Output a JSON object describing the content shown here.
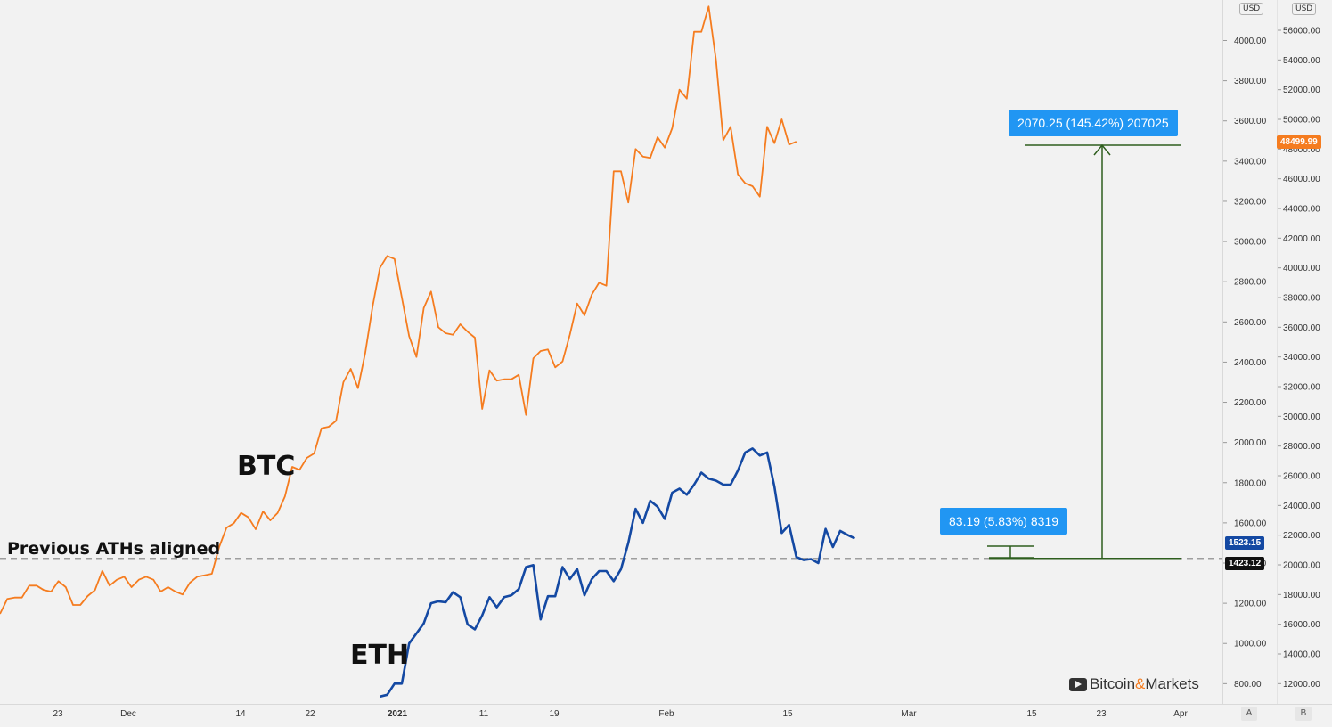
{
  "chart_data": {
    "type": "line",
    "title": "",
    "annotations": {
      "btc_label": "BTC",
      "eth_label": "ETH",
      "ath_label": "Previous ATHs aligned",
      "btc_measure": "2070.25 (145.42%) 207025",
      "eth_measure": "83.19 (5.83%) 8319"
    },
    "x_ticks": [
      "23",
      "Dec",
      "14",
      "22",
      "2021",
      "11",
      "19",
      "Feb",
      "15",
      "Mar",
      "15",
      "23",
      "Apr"
    ],
    "y_axis_left": {
      "unit": "USD",
      "range": [
        720,
        4060
      ],
      "ticks": [
        "800.00",
        "1000.00",
        "1200.00",
        "1400.00",
        "1600.00",
        "1800.00",
        "2000.00",
        "2200.00",
        "2400.00",
        "2600.00",
        "2800.00",
        "3000.00",
        "3200.00",
        "3400.00",
        "3600.00",
        "3800.00",
        "4000.00"
      ],
      "ticks_values": [
        800,
        1000,
        1200,
        1400,
        1600,
        1800,
        2000,
        2200,
        2400,
        2600,
        2800,
        3000,
        3200,
        3400,
        3600,
        3800,
        4000
      ]
    },
    "y_axis_right": {
      "unit": "USD",
      "range": [
        11000,
        58000
      ],
      "ticks": [
        "12000.00",
        "14000.00",
        "16000.00",
        "18000.00",
        "20000.00",
        "22000.00",
        "24000.00",
        "26000.00",
        "28000.00",
        "30000.00",
        "32000.00",
        "34000.00",
        "36000.00",
        "38000.00",
        "40000.00",
        "42000.00",
        "44000.00",
        "46000.00",
        "48000.00",
        "50000.00",
        "52000.00",
        "54000.00",
        "56000.00"
      ],
      "ticks_values": [
        12000,
        14000,
        16000,
        18000,
        20000,
        22000,
        24000,
        26000,
        28000,
        30000,
        32000,
        34000,
        36000,
        38000,
        40000,
        42000,
        44000,
        46000,
        48000,
        50000,
        52000,
        54000,
        56000
      ]
    },
    "reference_line": {
      "value_eth": 1423.12,
      "value_btc": 20100
    },
    "price_tags": {
      "btc_last": "48499.99",
      "eth_last": "1523.15",
      "ath": "1423.12"
    },
    "series": [
      {
        "name": "BTC",
        "color": "#f57c1f",
        "axis": "right",
        "x_start": 0,
        "values": [
          16700,
          17700,
          17800,
          17800,
          18600,
          18600,
          18300,
          18200,
          18900,
          18500,
          17300,
          17300,
          17900,
          18300,
          19600,
          18600,
          19000,
          19200,
          18500,
          19000,
          19200,
          19000,
          18200,
          18500,
          18200,
          18000,
          18800,
          19200,
          19300,
          19400,
          21200,
          22500,
          22800,
          23500,
          23200,
          22400,
          23600,
          23000,
          23500,
          24600,
          26600,
          26400,
          27200,
          27500,
          29200,
          29300,
          29700,
          32300,
          33200,
          31900,
          34300,
          37400,
          40000,
          40800,
          40600,
          38000,
          35400,
          34000,
          37300,
          38400,
          36000,
          35600,
          35500,
          36200,
          35700,
          35300,
          30500,
          33100,
          32400,
          32500,
          32500,
          32800,
          30100,
          33900,
          34400,
          34500,
          33300,
          33700,
          35500,
          37600,
          36800,
          38200,
          39000,
          38800,
          46500,
          46500,
          44400,
          48000,
          47500,
          47400,
          48800,
          48100,
          49400,
          52000,
          51400,
          55900,
          55900,
          57600,
          54000,
          48600,
          49500,
          46300,
          45700,
          45500,
          44800,
          49500,
          48400,
          50000,
          48300,
          48500
        ]
      },
      {
        "name": "ETH",
        "color": "#1449a3",
        "axis": "left",
        "x_start": 52,
        "values": [
          736,
          745,
          800,
          800,
          1000,
          1050,
          1100,
          1200,
          1210,
          1205,
          1255,
          1230,
          1095,
          1070,
          1140,
          1230,
          1180,
          1230,
          1240,
          1270,
          1380,
          1390,
          1120,
          1235,
          1235,
          1380,
          1320,
          1370,
          1240,
          1320,
          1360,
          1360,
          1310,
          1370,
          1500,
          1670,
          1600,
          1710,
          1680,
          1620,
          1750,
          1770,
          1740,
          1790,
          1850,
          1820,
          1810,
          1790,
          1790,
          1860,
          1950,
          1970,
          1935,
          1950,
          1780,
          1550,
          1590,
          1430,
          1415,
          1420,
          1400,
          1570,
          1480,
          1560,
          1540,
          1523
        ]
      }
    ]
  },
  "watermark": {
    "prefix": "Bitcoin",
    "amp": "&",
    "suffix": "Markets"
  },
  "footer": {
    "a": "A",
    "b": "B"
  }
}
